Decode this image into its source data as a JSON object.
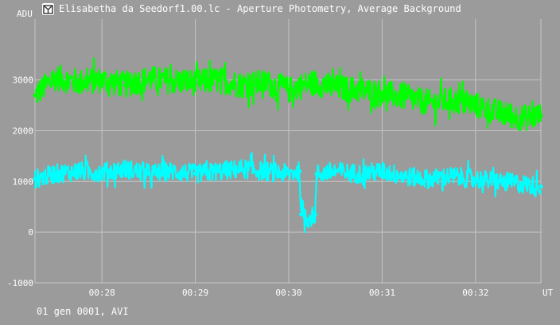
{
  "window": {
    "title": "Elisabetha da Seedorf1.00.lc - Aperture Photometry, Average Background",
    "icon": "app-logo-icon"
  },
  "footer": {
    "text": "01 gen 0001, AVI"
  },
  "chart_data": {
    "type": "line",
    "title": "Elisabetha da Seedorf1.00.lc - Aperture Photometry, Average Background",
    "ylabel": "ADU",
    "xlabel": "UT",
    "grid": true,
    "xlim": [
      "00:27:17",
      "00:32:42"
    ],
    "ylim": [
      -1000,
      4200
    ],
    "x_ticks": [
      "00:28",
      "00:29",
      "00:30",
      "00:31",
      "00:32"
    ],
    "y_ticks": [
      -1000,
      0,
      1000,
      2000,
      3000
    ],
    "background_color": "#9b9b9b",
    "grid_color": "#c4c4c4",
    "series": [
      {
        "color": "#00ff00",
        "points": [
          [
            "00:27:17",
            2700
          ],
          [
            "00:27:30",
            3050
          ],
          [
            "00:27:45",
            2950
          ],
          [
            "00:28:00",
            3000
          ],
          [
            "00:28:15",
            2900
          ],
          [
            "00:28:30",
            3020
          ],
          [
            "00:28:45",
            2980
          ],
          [
            "00:29:00",
            2950
          ],
          [
            "00:29:15",
            3000
          ],
          [
            "00:29:30",
            2900
          ],
          [
            "00:29:45",
            2950
          ],
          [
            "00:30:00",
            2800
          ],
          [
            "00:30:15",
            2950
          ],
          [
            "00:30:30",
            2850
          ],
          [
            "00:30:45",
            2800
          ],
          [
            "00:31:00",
            2750
          ],
          [
            "00:31:15",
            2650
          ],
          [
            "00:31:30",
            2550
          ],
          [
            "00:31:45",
            2600
          ],
          [
            "00:32:00",
            2500
          ],
          [
            "00:32:15",
            2350
          ],
          [
            "00:32:30",
            2250
          ],
          [
            "00:32:42",
            2300
          ]
        ]
      },
      {
        "color": "#00ffff",
        "points": [
          [
            "00:27:17",
            1050
          ],
          [
            "00:27:30",
            1150
          ],
          [
            "00:27:45",
            1200
          ],
          [
            "00:28:00",
            1180
          ],
          [
            "00:28:15",
            1250
          ],
          [
            "00:28:30",
            1150
          ],
          [
            "00:28:45",
            1200
          ],
          [
            "00:29:00",
            1150
          ],
          [
            "00:29:15",
            1200
          ],
          [
            "00:29:30",
            1250
          ],
          [
            "00:29:45",
            1200
          ],
          [
            "00:30:00",
            1150
          ],
          [
            "00:30:07",
            1200
          ],
          [
            "00:30:08",
            350
          ],
          [
            "00:30:12",
            250
          ],
          [
            "00:30:17",
            350
          ],
          [
            "00:30:18",
            1150
          ],
          [
            "00:30:30",
            1200
          ],
          [
            "00:30:45",
            1150
          ],
          [
            "00:31:00",
            1200
          ],
          [
            "00:31:15",
            1100
          ],
          [
            "00:31:30",
            1050
          ],
          [
            "00:31:45",
            1100
          ],
          [
            "00:32:00",
            1050
          ],
          [
            "00:32:15",
            1000
          ],
          [
            "00:32:30",
            950
          ],
          [
            "00:32:42",
            900
          ]
        ]
      }
    ]
  }
}
